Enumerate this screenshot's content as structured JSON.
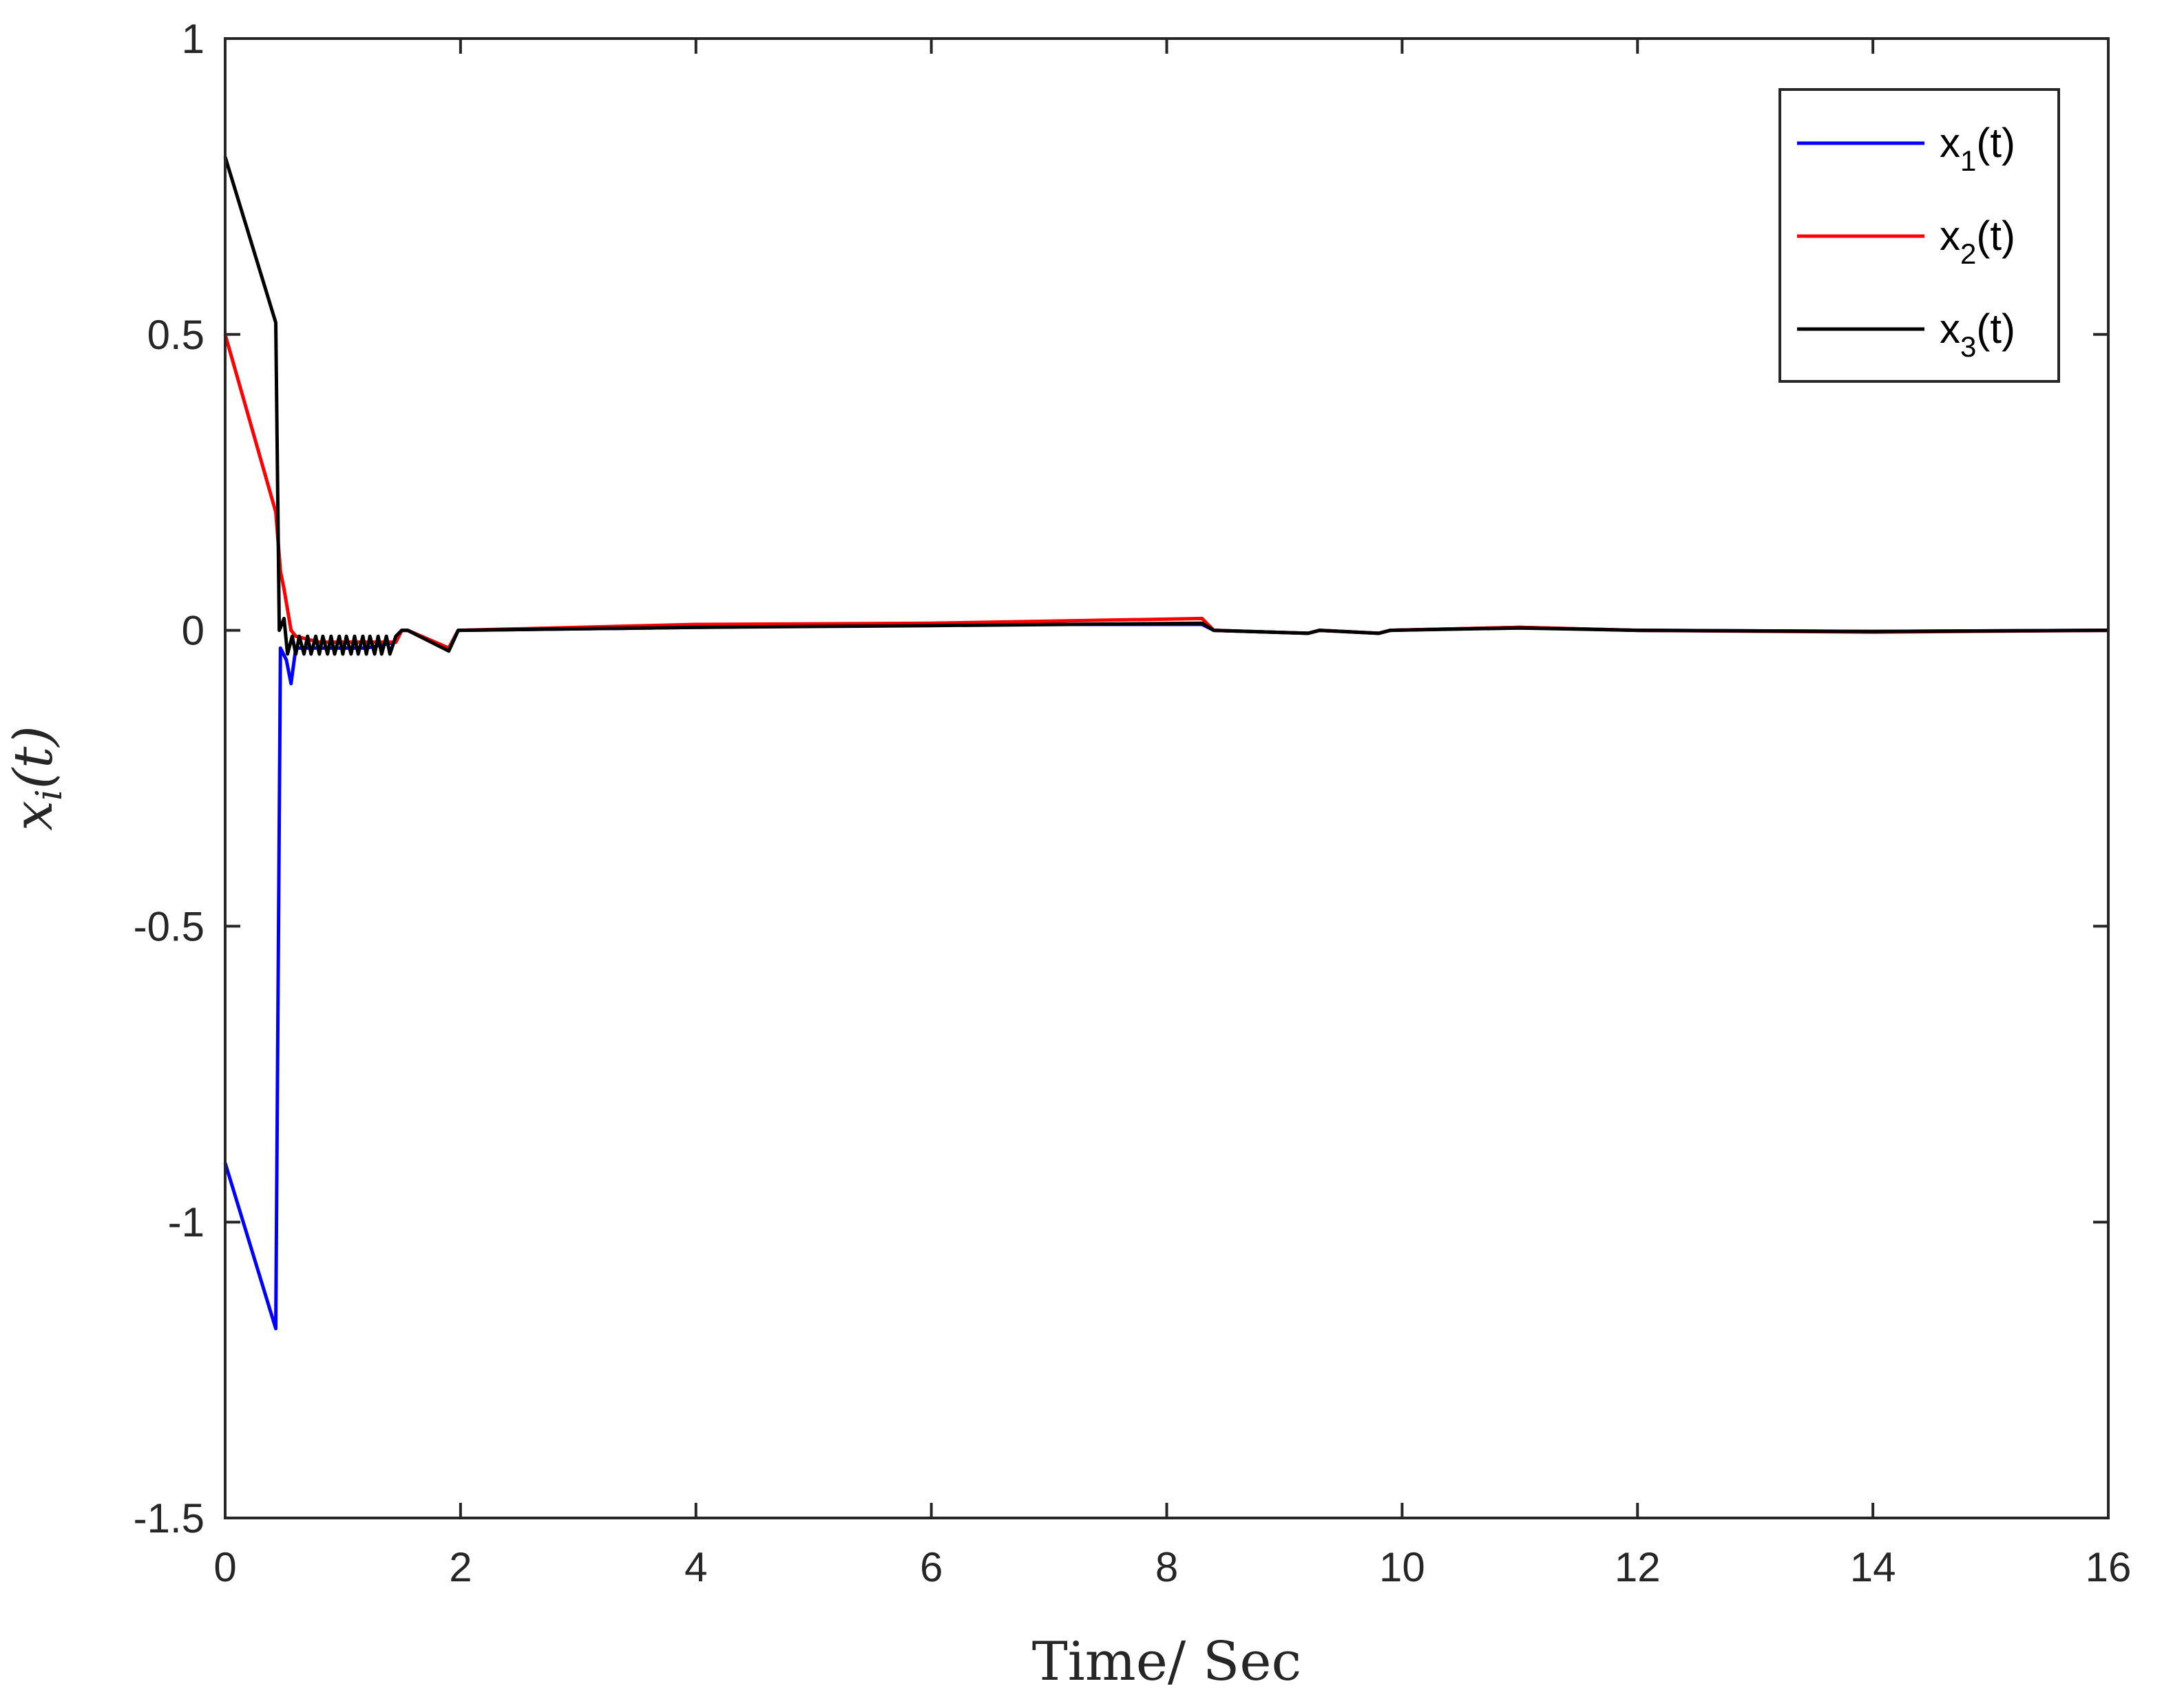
{
  "chart_data": {
    "type": "line",
    "title": "",
    "xlabel": "Time/ Sec",
    "ylabel": "x",
    "ylabel_subscript": "i",
    "ylabel_arg": "(t)",
    "xlim": [
      0,
      16
    ],
    "ylim": [
      -1.5,
      1
    ],
    "xticks": [
      0,
      2,
      4,
      6,
      8,
      10,
      12,
      14,
      16
    ],
    "yticks": [
      -1.5,
      -1,
      -0.5,
      0,
      0.5,
      1
    ],
    "grid": false,
    "legend_position": "top-right",
    "series": [
      {
        "name": "x₁(t)",
        "legend_base": "x",
        "legend_sub": "1",
        "legend_arg": "(t)",
        "color": "#0000ff",
        "points": [
          [
            0,
            -0.9
          ],
          [
            0.43,
            -1.18
          ],
          [
            0.47,
            -0.03
          ],
          [
            0.52,
            -0.05
          ],
          [
            0.56,
            -0.09
          ],
          [
            0.6,
            -0.03
          ],
          [
            0.8,
            -0.03
          ],
          [
            1.0,
            -0.03
          ],
          [
            1.2,
            -0.03
          ],
          [
            1.45,
            -0.02
          ],
          [
            1.5,
            0.0
          ],
          [
            1.55,
            0.0
          ],
          [
            1.9,
            -0.03
          ],
          [
            1.98,
            0.0
          ],
          [
            4,
            0.005
          ],
          [
            6,
            0.01
          ],
          [
            8.3,
            0.01
          ],
          [
            8.4,
            0.0
          ],
          [
            9.2,
            -0.005
          ],
          [
            9.3,
            0.0
          ],
          [
            9.8,
            -0.005
          ],
          [
            9.9,
            0.0
          ],
          [
            11,
            0.005
          ],
          [
            12,
            0.0
          ],
          [
            14,
            -0.002
          ],
          [
            16,
            0.0
          ]
        ]
      },
      {
        "name": "x₂(t)",
        "legend_base": "x",
        "legend_sub": "2",
        "legend_arg": "(t)",
        "color": "#ff0000",
        "points": [
          [
            0,
            0.5
          ],
          [
            0.43,
            0.2
          ],
          [
            0.47,
            0.1
          ],
          [
            0.5,
            0.07
          ],
          [
            0.56,
            0.0
          ],
          [
            0.6,
            -0.01
          ],
          [
            0.8,
            -0.02
          ],
          [
            1.0,
            -0.02
          ],
          [
            1.2,
            -0.02
          ],
          [
            1.45,
            -0.02
          ],
          [
            1.5,
            0.0
          ],
          [
            1.55,
            0.0
          ],
          [
            1.9,
            -0.03
          ],
          [
            1.98,
            0.0
          ],
          [
            4,
            0.01
          ],
          [
            6,
            0.012
          ],
          [
            8.3,
            0.02
          ],
          [
            8.4,
            0.0
          ],
          [
            9.2,
            -0.005
          ],
          [
            9.3,
            0.0
          ],
          [
            9.8,
            -0.005
          ],
          [
            9.9,
            0.0
          ],
          [
            11,
            0.005
          ],
          [
            12,
            0.0
          ],
          [
            14,
            -0.003
          ],
          [
            16,
            0.0
          ]
        ]
      },
      {
        "name": "x₃(t)",
        "legend_base": "x",
        "legend_sub": "3",
        "legend_arg": "(t)",
        "color": "#000000",
        "points": [
          [
            0,
            0.8
          ],
          [
            0.43,
            0.52
          ],
          [
            0.46,
            0.0
          ],
          [
            0.5,
            0.02
          ],
          [
            0.53,
            -0.04
          ],
          [
            0.57,
            -0.01
          ],
          [
            0.6,
            -0.04
          ],
          [
            0.63,
            -0.01
          ],
          [
            0.67,
            -0.04
          ],
          [
            0.7,
            -0.01
          ],
          [
            0.73,
            -0.04
          ],
          [
            0.77,
            -0.01
          ],
          [
            0.8,
            -0.04
          ],
          [
            0.83,
            -0.01
          ],
          [
            0.87,
            -0.04
          ],
          [
            0.9,
            -0.01
          ],
          [
            0.93,
            -0.04
          ],
          [
            0.97,
            -0.01
          ],
          [
            1.0,
            -0.04
          ],
          [
            1.03,
            -0.01
          ],
          [
            1.07,
            -0.04
          ],
          [
            1.1,
            -0.01
          ],
          [
            1.13,
            -0.04
          ],
          [
            1.17,
            -0.01
          ],
          [
            1.2,
            -0.04
          ],
          [
            1.23,
            -0.01
          ],
          [
            1.27,
            -0.04
          ],
          [
            1.3,
            -0.01
          ],
          [
            1.33,
            -0.04
          ],
          [
            1.37,
            -0.01
          ],
          [
            1.4,
            -0.04
          ],
          [
            1.45,
            -0.01
          ],
          [
            1.5,
            0.0
          ],
          [
            1.55,
            0.0
          ],
          [
            1.9,
            -0.035
          ],
          [
            1.98,
            0.0
          ],
          [
            4,
            0.005
          ],
          [
            6,
            0.008
          ],
          [
            8.3,
            0.012
          ],
          [
            8.4,
            0.0
          ],
          [
            9.2,
            -0.005
          ],
          [
            9.3,
            0.0
          ],
          [
            9.8,
            -0.005
          ],
          [
            9.9,
            0.0
          ],
          [
            11,
            0.004
          ],
          [
            12,
            0.0
          ],
          [
            14,
            -0.002
          ],
          [
            16,
            0.0
          ]
        ]
      }
    ]
  }
}
